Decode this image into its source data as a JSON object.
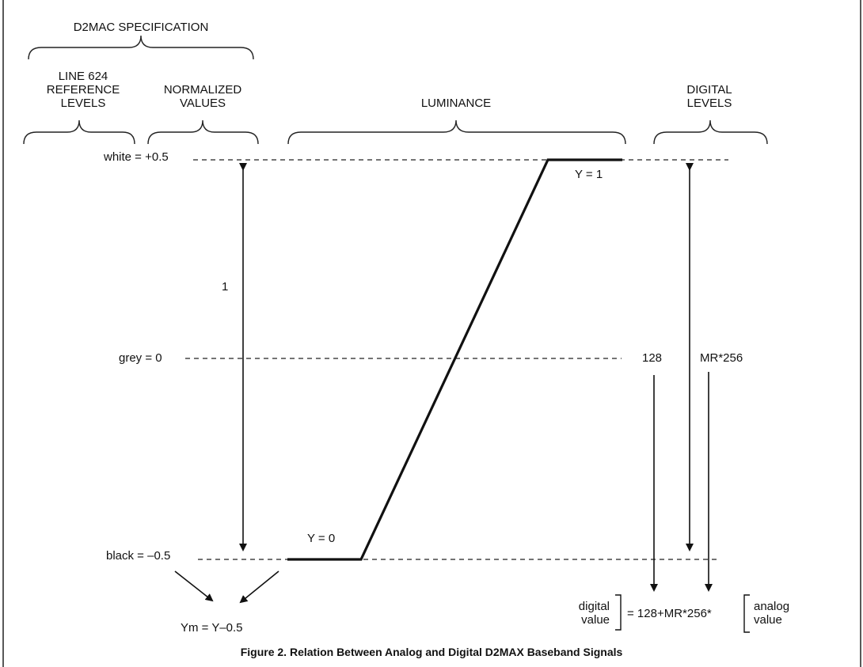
{
  "header": {
    "spec_title": "D2MAC SPECIFICATION",
    "ref_levels_l1": "LINE 624",
    "ref_levels_l2": "REFERENCE",
    "ref_levels_l3": "LEVELS",
    "normalized_l1": "NORMALIZED",
    "normalized_l2": "VALUES",
    "luminance": "LUMINANCE",
    "digital_levels_l1": "DIGITAL",
    "digital_levels_l2": "LEVELS"
  },
  "levels": {
    "white": "white = +0.5",
    "grey": "grey = 0",
    "black": "black = –0.5"
  },
  "labels": {
    "span_one": "1",
    "y_one": "Y = 1",
    "y_zero": "Y = 0",
    "ym_formula": "Ym = Y–0.5",
    "val_128": "128",
    "mr256": "MR*256",
    "digital_value_l1": "digital",
    "digital_value_l2": "value",
    "equation": "= 128+MR*256*",
    "analog_value_l1": "analog",
    "analog_value_l2": "value"
  },
  "caption": "Figure 2.  Relation Between Analog and Digital D2MAX Baseband Signals",
  "colors": {
    "ink": "#111111",
    "background": "#ffffff"
  }
}
